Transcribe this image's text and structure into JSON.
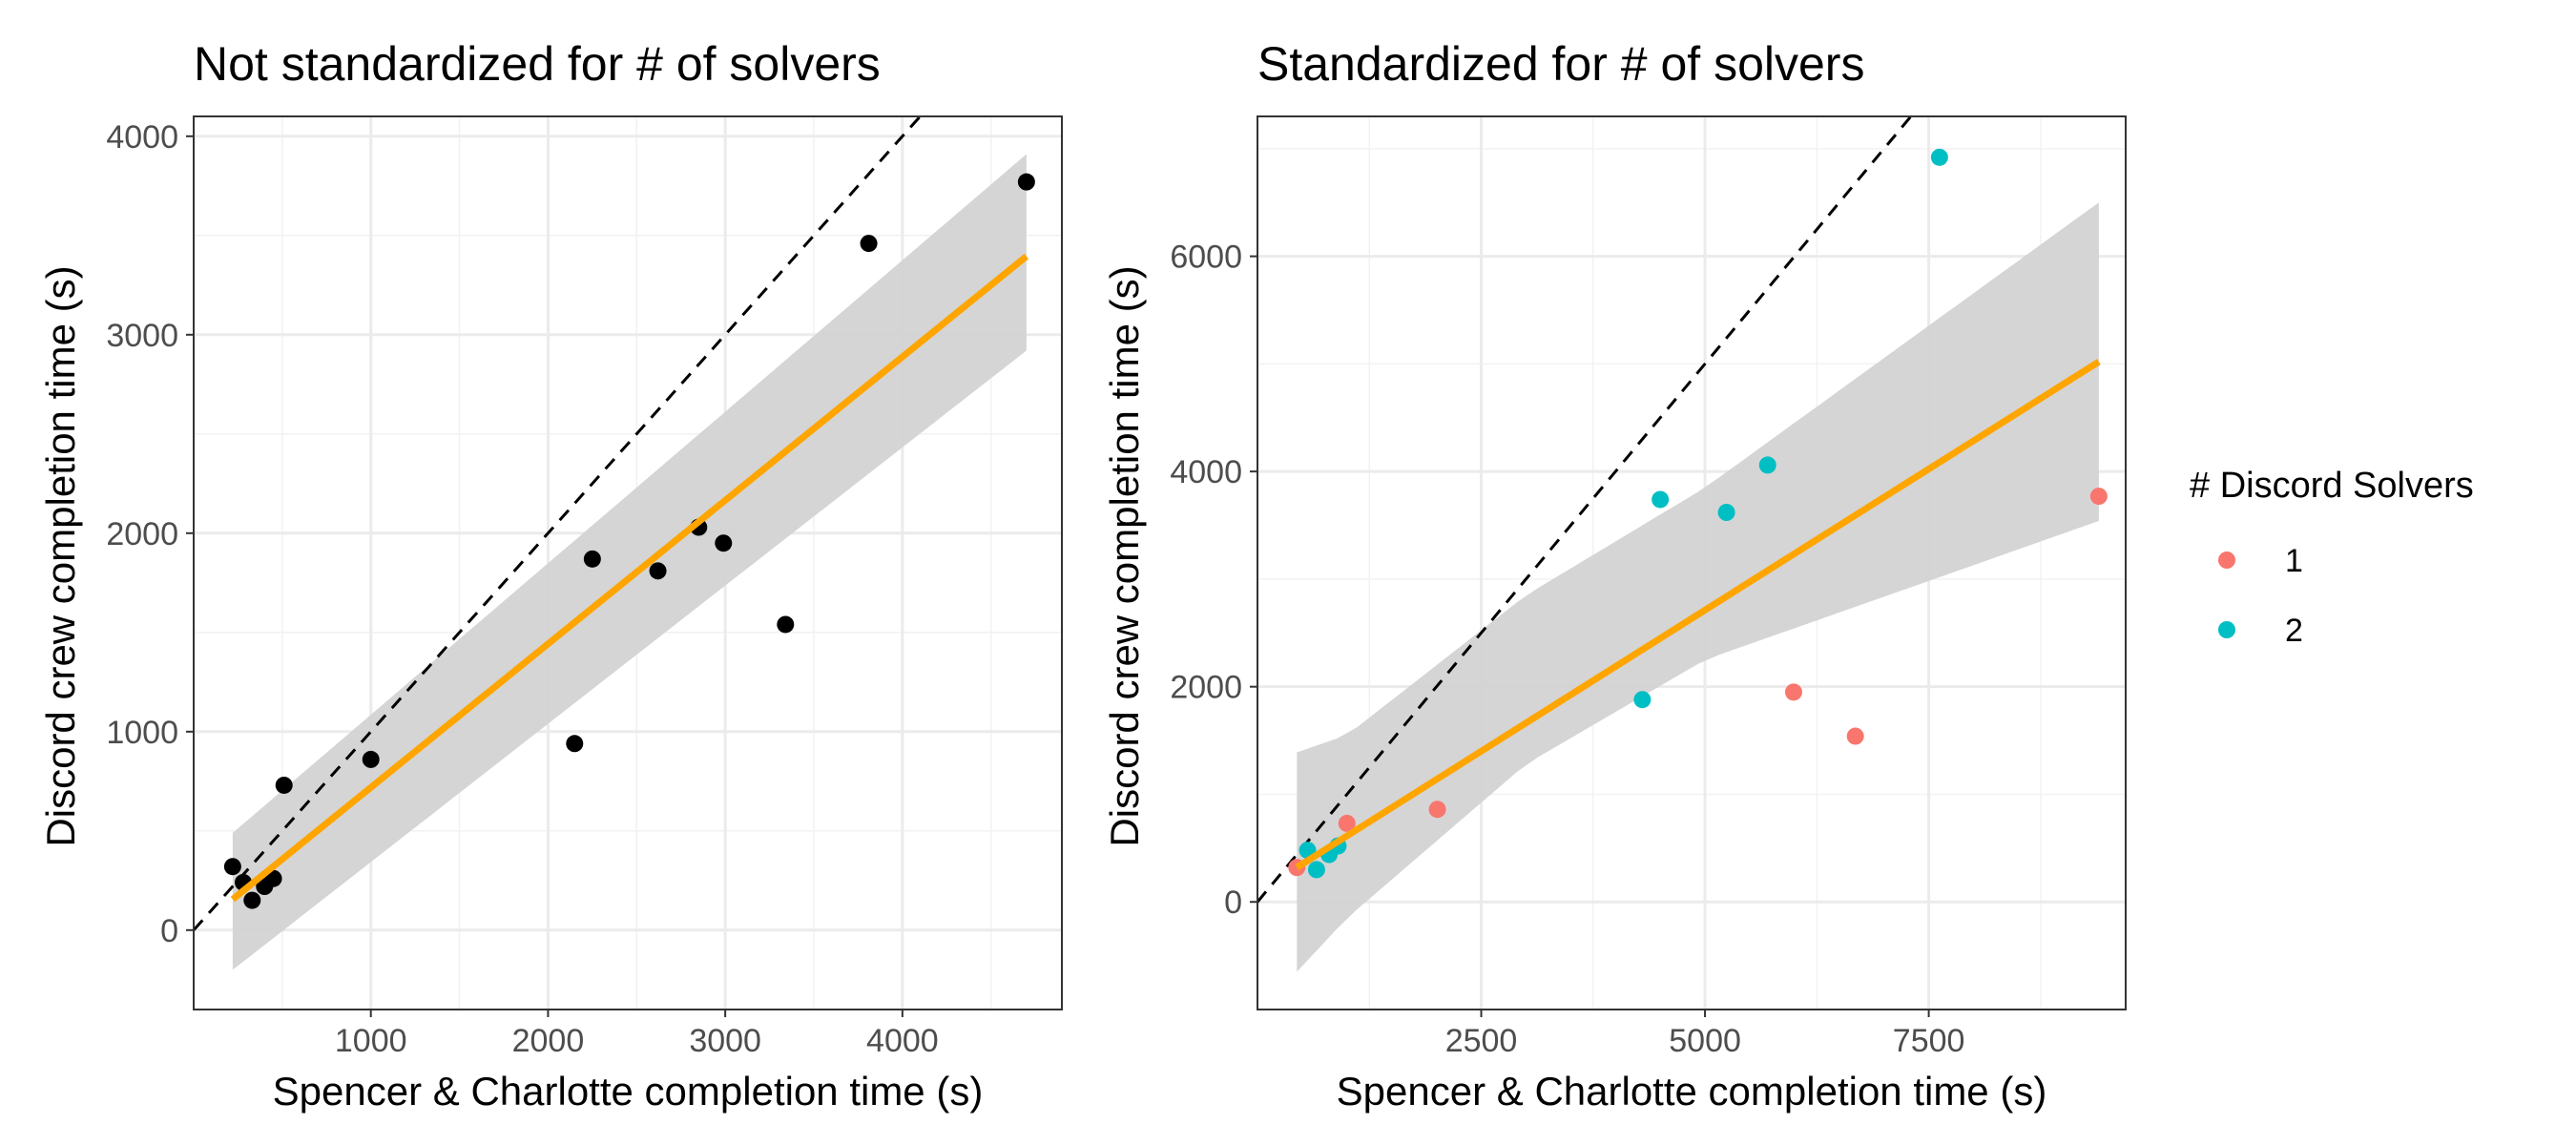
{
  "chart_data": [
    {
      "type": "scatter",
      "title": "Not standardized for # of solvers",
      "xlabel": "Spencer & Charlotte completion time (s)",
      "ylabel": "Discord crew completion time (s)",
      "xlim": [
        0,
        4900
      ],
      "ylim": [
        -400,
        4100
      ],
      "x_ticks": [
        1000,
        2000,
        3000,
        4000
      ],
      "x_tick_labels": [
        "1000",
        "2000",
        "3000",
        "4000"
      ],
      "y_ticks": [
        0,
        1000,
        2000,
        3000,
        4000
      ],
      "y_tick_labels": [
        "0",
        "1000",
        "2000",
        "3000",
        "4000"
      ],
      "grid": true,
      "series": [
        {
          "x": [
            220,
            280,
            330,
            400,
            450,
            510,
            1000,
            2150,
            2250,
            2620,
            2850,
            2990,
            3340,
            3810,
            4700
          ],
          "y": [
            320,
            240,
            150,
            220,
            260,
            730,
            860,
            940,
            1870,
            1810,
            2030,
            1950,
            1540,
            3460,
            3770
          ],
          "color": "#000000"
        }
      ],
      "reference_line": {
        "kind": "identity y = x",
        "style": "dashed",
        "color": "#000000"
      },
      "fit_line": {
        "x": [
          220,
          4700
        ],
        "y": [
          155,
          3395
        ],
        "color": "#FFA500"
      },
      "confidence_band": {
        "x": [
          220,
          4700
        ],
        "lower": [
          -200,
          2920
        ],
        "upper": [
          490,
          3910
        ],
        "color": "#d3d3d3"
      }
    },
    {
      "type": "scatter",
      "title": "Standardized for # of solvers",
      "xlabel": "Spencer & Charlotte completion time (s)",
      "ylabel": "Discord crew completion time (s)",
      "xlim": [
        0,
        9700
      ],
      "ylim": [
        -1000,
        7300
      ],
      "x_ticks": [
        2500,
        5000,
        7500
      ],
      "x_tick_labels": [
        "2500",
        "5000",
        "7500"
      ],
      "y_ticks": [
        0,
        2000,
        4000,
        6000
      ],
      "y_tick_labels": [
        "0",
        "2000",
        "4000",
        "6000"
      ],
      "grid": true,
      "legend": {
        "title": "# Discord Solvers",
        "position": "right"
      },
      "series": [
        {
          "name": "1",
          "color": "#F8766D",
          "x": [
            440,
            1000,
            2010,
            5990,
            6680,
            9400
          ],
          "y": [
            320,
            730,
            860,
            1950,
            1540,
            3770
          ]
        },
        {
          "name": "2",
          "color": "#00BFC4",
          "x": [
            560,
            660,
            800,
            900,
            4300,
            4500,
            5240,
            5700,
            7620
          ],
          "y": [
            480,
            300,
            440,
            520,
            1880,
            3740,
            3620,
            4060,
            6920
          ]
        }
      ],
      "reference_line": {
        "kind": "identity y = x",
        "style": "dashed",
        "color": "#000000"
      },
      "fit_line": {
        "x": [
          440,
          9400
        ],
        "y": [
          320,
          5020
        ],
        "color": "#FFA500"
      },
      "confidence_band": {
        "x": [
          440,
          1000,
          3000,
          5000,
          9400
        ],
        "lower": [
          -650,
          -150,
          1280,
          2250,
          3540
        ],
        "upper": [
          1390,
          1550,
          2850,
          3850,
          6500
        ],
        "color": "#d3d3d3"
      }
    }
  ]
}
